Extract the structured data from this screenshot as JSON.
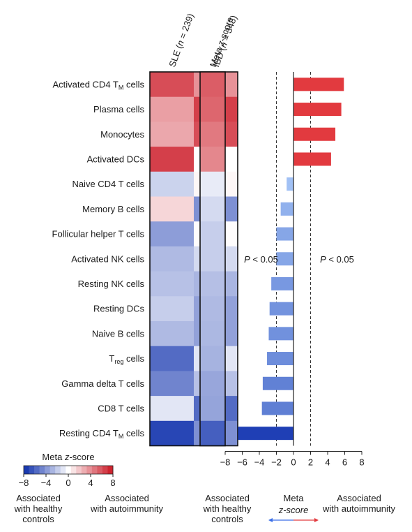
{
  "chart_data": [
    {
      "type": "heatmap",
      "columns": [
        {
          "pre": "SLE (",
          "italic": "n",
          "post": " = 239)"
        },
        {
          "pre": "IBD (",
          "italic": "n",
          "post": " = 348)"
        }
      ],
      "rows": [
        {
          "label": "Activated CD4 T",
          "sub": "M",
          "suffix": " cells"
        },
        {
          "label": "Plasma cells",
          "sub": "",
          "suffix": ""
        },
        {
          "label": "Monocytes",
          "sub": "",
          "suffix": ""
        },
        {
          "label": "Activated DCs",
          "sub": "",
          "suffix": ""
        },
        {
          "label": "Naive CD4 T cells",
          "sub": "",
          "suffix": ""
        },
        {
          "label": "Memory B cells",
          "sub": "",
          "suffix": ""
        },
        {
          "label": "Follicular helper T cells",
          "sub": "",
          "suffix": ""
        },
        {
          "label": "Activated NK cells",
          "sub": "",
          "suffix": ""
        },
        {
          "label": "Resting NK cells",
          "sub": "",
          "suffix": ""
        },
        {
          "label": "Resting DCs",
          "sub": "",
          "suffix": ""
        },
        {
          "label": "Naive B cells",
          "sub": "",
          "suffix": ""
        },
        {
          "label": "T",
          "sub": "reg",
          "suffix": " cells"
        },
        {
          "label": "Gamma delta T cells",
          "sub": "",
          "suffix": ""
        },
        {
          "label": "CD8 T cells",
          "sub": "",
          "suffix": ""
        },
        {
          "label": "Resting CD4 T",
          "sub": "M",
          "suffix": " cells"
        }
      ],
      "values": [
        [
          6.5,
          4.0
        ],
        [
          3.5,
          7.0
        ],
        [
          3.2,
          6.5
        ],
        [
          7.0,
          0.0
        ],
        [
          -1.8,
          0.3
        ],
        [
          1.5,
          -4.5
        ],
        [
          -4.0,
          0.1
        ],
        [
          -2.8,
          -1.5
        ],
        [
          -2.5,
          -3.0
        ],
        [
          -2.0,
          -3.8
        ],
        [
          -2.8,
          -3.8
        ],
        [
          -6.0,
          -1.0
        ],
        [
          -5.0,
          -2.5
        ],
        [
          -1.0,
          -6.0
        ],
        [
          -7.5,
          -4.5
        ]
      ],
      "colorbar": {
        "title_pre": "Meta ",
        "title_italic": "z",
        "title_post": "-score",
        "range": [
          -8,
          8
        ],
        "ticks": [
          "−8",
          "−4",
          "0",
          "4",
          "8"
        ]
      },
      "legend_left": [
        "Associated",
        "with healthy",
        "controls"
      ],
      "legend_right": [
        "Associated",
        "with autoimmunity"
      ]
    },
    {
      "type": "heatmap",
      "column": {
        "pre": "Meta ",
        "italic": "z",
        "post": "-score"
      },
      "values": [
        5.9,
        5.6,
        4.9,
        4.4,
        -0.8,
        -1.5,
        -2.0,
        -2.0,
        -2.6,
        -2.8,
        -2.9,
        -3.1,
        -3.6,
        -3.7,
        -6.5
      ]
    },
    {
      "type": "bar",
      "orientation": "horizontal",
      "categories_ref": "same rows as heatmap",
      "values": [
        5.9,
        5.6,
        4.9,
        4.4,
        -0.8,
        -1.5,
        -2.0,
        -2.0,
        -2.6,
        -2.8,
        -2.9,
        -3.1,
        -3.6,
        -3.7,
        -6.5
      ],
      "xlim": [
        -8,
        8
      ],
      "xticks": [
        "−8",
        "−6",
        "−4",
        "−2",
        "0",
        "2",
        "4",
        "6",
        "8"
      ],
      "thresholds": [
        -2,
        2
      ],
      "annotations": [
        {
          "pre": "",
          "italic": "P",
          "post": " < 0.05"
        },
        {
          "pre": "",
          "italic": "P",
          "post": " < 0.05"
        }
      ],
      "legend_left": [
        "Associated",
        "with healthy",
        "controls"
      ],
      "legend_center": [
        "Meta",
        "z-score"
      ],
      "legend_right": [
        "Associated",
        "with autoimmunity"
      ],
      "colors": {
        "positive": "#e23a3f",
        "negative_low": "#a8c8f8",
        "negative_high": "#1f3fb5"
      }
    }
  ]
}
